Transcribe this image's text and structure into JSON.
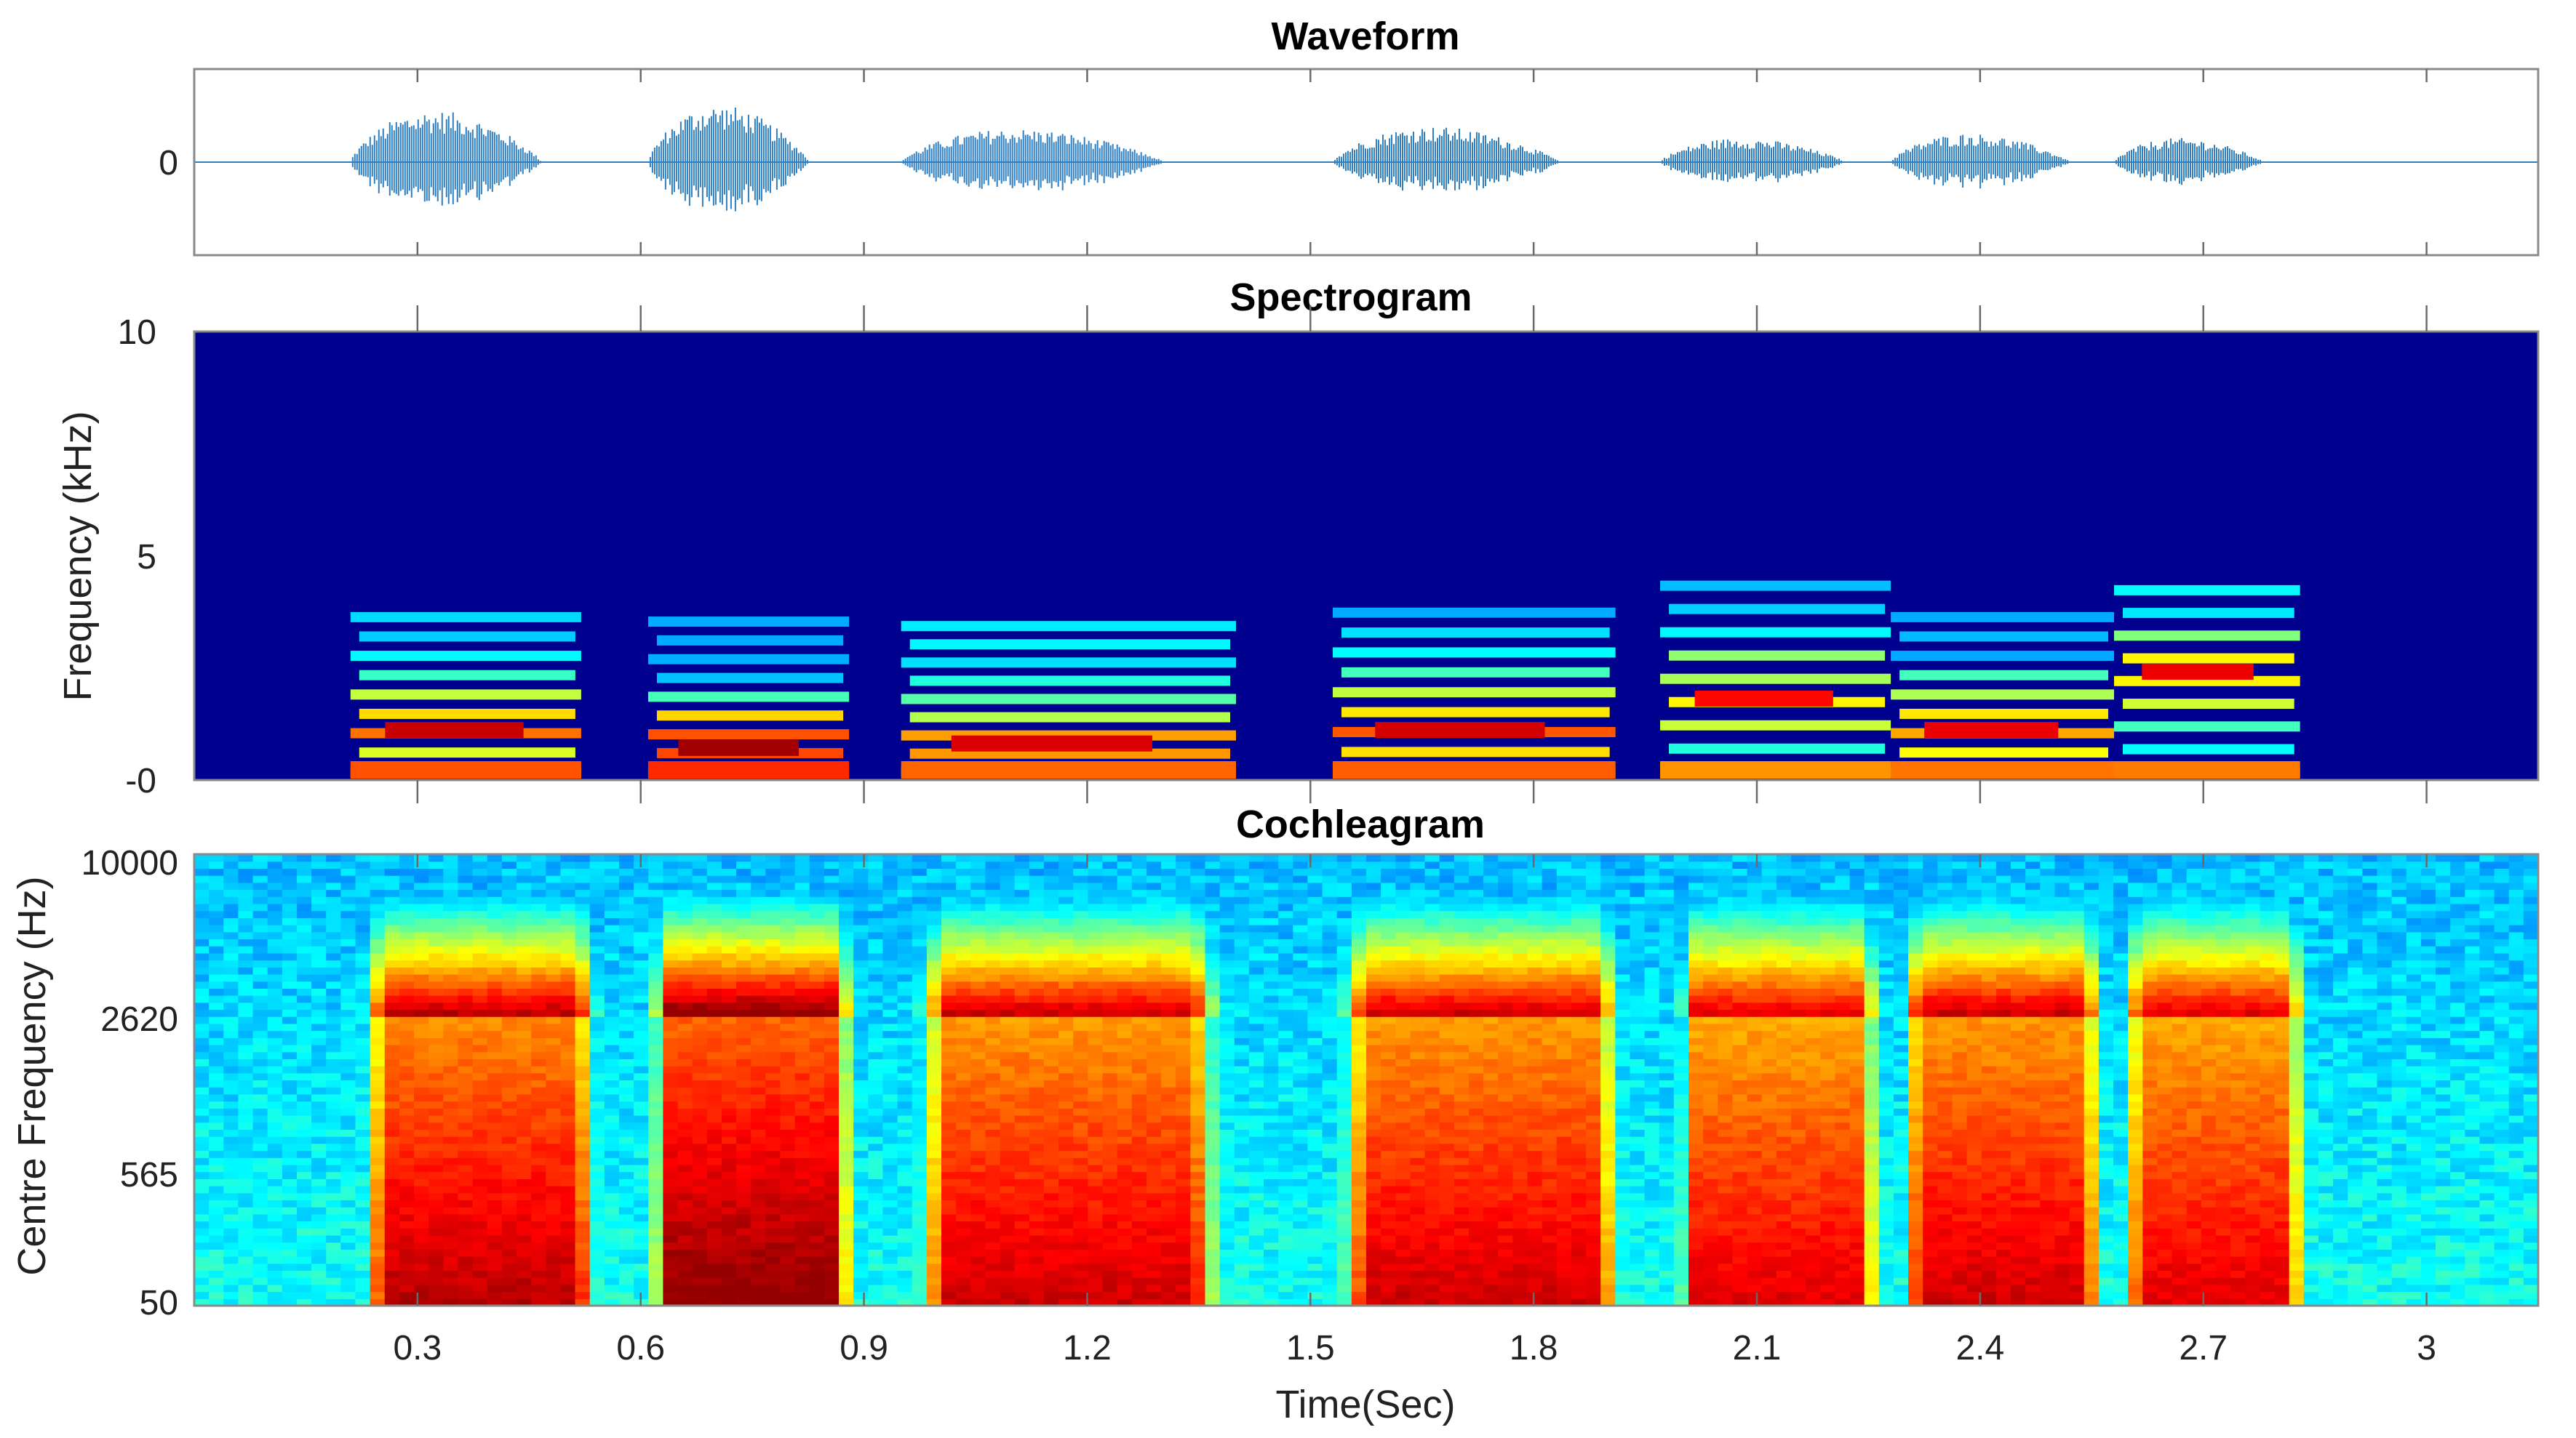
{
  "chart_data": [
    {
      "type": "line",
      "title": "Waveform",
      "xlabel": "",
      "ylabel": "",
      "yticks": [
        "0"
      ],
      "xlim": [
        0,
        3.15
      ],
      "x_tick_values": [
        0.3,
        0.6,
        0.9,
        1.2,
        1.5,
        1.8,
        2.1,
        2.4,
        2.7,
        3.0
      ],
      "line_color": "#2f7fc1",
      "segments": [
        {
          "start": 0.21,
          "end": 0.53,
          "amplitude": 0.9
        },
        {
          "start": 0.61,
          "end": 0.88,
          "amplitude": 1.0
        },
        {
          "start": 0.95,
          "end": 1.39,
          "amplitude": 0.58
        },
        {
          "start": 1.53,
          "end": 1.91,
          "amplitude": 0.62
        },
        {
          "start": 1.97,
          "end": 2.28,
          "amplitude": 0.42
        },
        {
          "start": 2.28,
          "end": 2.58,
          "amplitude": 0.5
        },
        {
          "start": 2.58,
          "end": 2.83,
          "amplitude": 0.42
        }
      ]
    },
    {
      "type": "heatmap",
      "title": "Spectrogram",
      "xlabel": "",
      "ylabel": "Frequency (kHz)",
      "yticks": [
        "10",
        "5",
        "-0"
      ],
      "ylim": [
        0,
        10
      ],
      "xlim": [
        0,
        3.15
      ],
      "x_tick_values": [
        0.3,
        0.6,
        0.9,
        1.2,
        1.5,
        1.8,
        2.1,
        2.4,
        2.7,
        3.0
      ],
      "colormap": "jet",
      "background_color": "#00008f",
      "voiced_segments": [
        {
          "start": 0.21,
          "end": 0.52,
          "top_khz": 3.6,
          "peak_khz": 1.1,
          "strength": 0.82
        },
        {
          "start": 0.61,
          "end": 0.88,
          "top_khz": 3.5,
          "peak_khz": 0.7,
          "strength": 0.95
        },
        {
          "start": 0.95,
          "end": 1.4,
          "top_khz": 3.4,
          "peak_khz": 0.8,
          "strength": 0.75
        },
        {
          "start": 1.53,
          "end": 1.91,
          "top_khz": 3.7,
          "peak_khz": 1.1,
          "strength": 0.78
        },
        {
          "start": 1.97,
          "end": 2.28,
          "top_khz": 4.3,
          "peak_khz": 1.8,
          "strength": 0.6
        },
        {
          "start": 2.28,
          "end": 2.58,
          "top_khz": 3.6,
          "peak_khz": 1.1,
          "strength": 0.7
        },
        {
          "start": 2.58,
          "end": 2.83,
          "top_khz": 4.2,
          "peak_khz": 2.4,
          "strength": 0.68
        }
      ]
    },
    {
      "type": "heatmap",
      "title": "Cochleagram",
      "xlabel": "Time(Sec)",
      "ylabel": "Centre Frequency (Hz)",
      "yticks": [
        "10000",
        "2620",
        "565",
        "50"
      ],
      "xticks": [
        "0.3",
        "0.6",
        "0.9",
        "1.2",
        "1.5",
        "1.8",
        "2.1",
        "2.4",
        "2.7",
        "3"
      ],
      "x_tick_values": [
        0.3,
        0.6,
        0.9,
        1.2,
        1.5,
        1.8,
        2.1,
        2.4,
        2.7,
        3.0
      ],
      "xlim": [
        0,
        3.15
      ],
      "colormap": "jet",
      "channels": 64,
      "voiced_segments": [
        {
          "start": 0.21,
          "end": 0.56,
          "level": 0.92
        },
        {
          "start": 0.6,
          "end": 0.9,
          "level": 0.97
        },
        {
          "start": 0.95,
          "end": 1.4,
          "level": 0.9
        },
        {
          "start": 1.52,
          "end": 1.94,
          "level": 0.9
        },
        {
          "start": 1.98,
          "end": 2.28,
          "level": 0.88
        },
        {
          "start": 2.28,
          "end": 2.58,
          "level": 0.9
        },
        {
          "start": 2.58,
          "end": 2.85,
          "level": 0.88
        }
      ]
    }
  ]
}
